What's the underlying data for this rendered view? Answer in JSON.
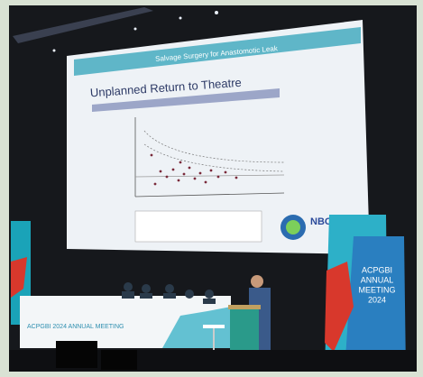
{
  "slide": {
    "header": "Salvage Surgery for Anastomotic Leak",
    "title": "Unplanned Return to Theatre",
    "logo": "NBOC"
  },
  "right_banner": [
    "ACPGBI",
    "ANNUAL",
    "MEETING",
    "2024"
  ],
  "table_banner": "ACPGBI 2024 ANNUAL MEETING"
}
